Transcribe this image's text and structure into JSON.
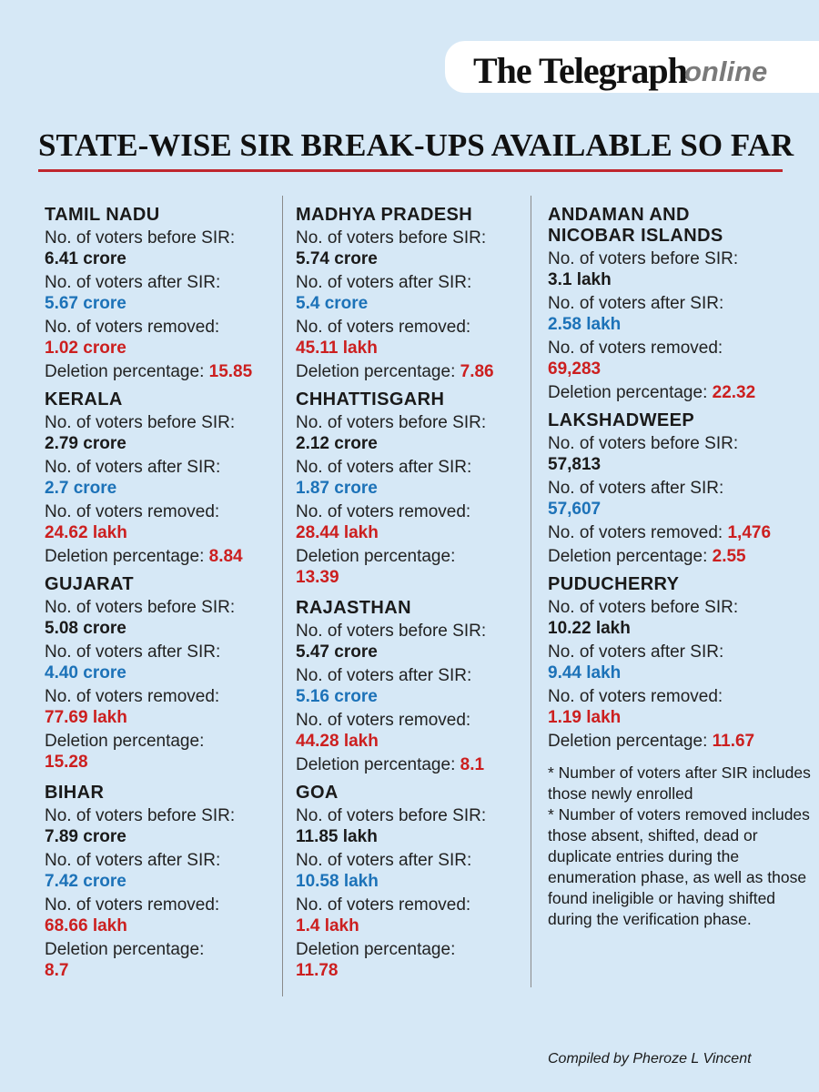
{
  "brand": {
    "main": "The Telegraph",
    "sub": "online"
  },
  "title": "STATE-WISE SIR BREAK-UPS AVAILABLE SO FAR",
  "labels": {
    "before": "No. of voters before SIR:",
    "after": "No. of voters after SIR:",
    "removed": "No. of voters removed:",
    "pct": "Deletion percentage:"
  },
  "states": [
    {
      "name": "TAMIL NADU",
      "before": "6.41 crore",
      "after": "5.67 crore",
      "removed": "1.02 crore",
      "pct": "15.85"
    },
    {
      "name": "KERALA",
      "before": "2.79 crore",
      "after": "2.7 crore",
      "removed": "24.62 lakh",
      "pct": "8.84"
    },
    {
      "name": "GUJARAT",
      "before": "5.08 crore",
      "after": "4.40 crore",
      "removed": "77.69 lakh",
      "pct": "15.28"
    },
    {
      "name": "BIHAR",
      "before": "7.89 crore",
      "after": "7.42 crore",
      "removed": "68.66 lakh",
      "pct": "8.7"
    },
    {
      "name": "MADHYA PRADESH",
      "before": "5.74 crore",
      "after": "5.4 crore",
      "removed": "45.11 lakh",
      "pct": "7.86"
    },
    {
      "name": "CHHATTISGARH",
      "before": "2.12 crore",
      "after": "1.87 crore",
      "removed": "28.44 lakh",
      "pct": "13.39"
    },
    {
      "name": "RAJASTHAN",
      "before": "5.47 crore",
      "after": "5.16 crore",
      "removed": "44.28 lakh",
      "pct": "8.1"
    },
    {
      "name": "GOA",
      "before": "11.85 lakh",
      "after": "10.58 lakh",
      "removed": "1.4 lakh",
      "pct": "11.78"
    },
    {
      "name": "ANDAMAN AND NICOBAR ISLANDS",
      "before": "3.1 lakh",
      "after": "2.58 lakh",
      "removed": "69,283",
      "pct": "22.32"
    },
    {
      "name": "LAKSHADWEEP",
      "before": "57,813",
      "after": "57,607",
      "removed": "1,476",
      "pct": "2.55"
    },
    {
      "name": "PUDUCHERRY",
      "before": "10.22 lakh",
      "after": "9.44 lakh",
      "removed": "1.19 lakh",
      "pct": "11.67"
    }
  ],
  "notes": [
    "* Number of voters after SIR includes those newly enrolled",
    "* Number of voters removed includes those absent, shifted, dead or duplicate entries during the enumeration phase, as well as those found ineligible or having shifted during the verification phase."
  ],
  "credit": "Compiled by Pheroze L Vincent"
}
